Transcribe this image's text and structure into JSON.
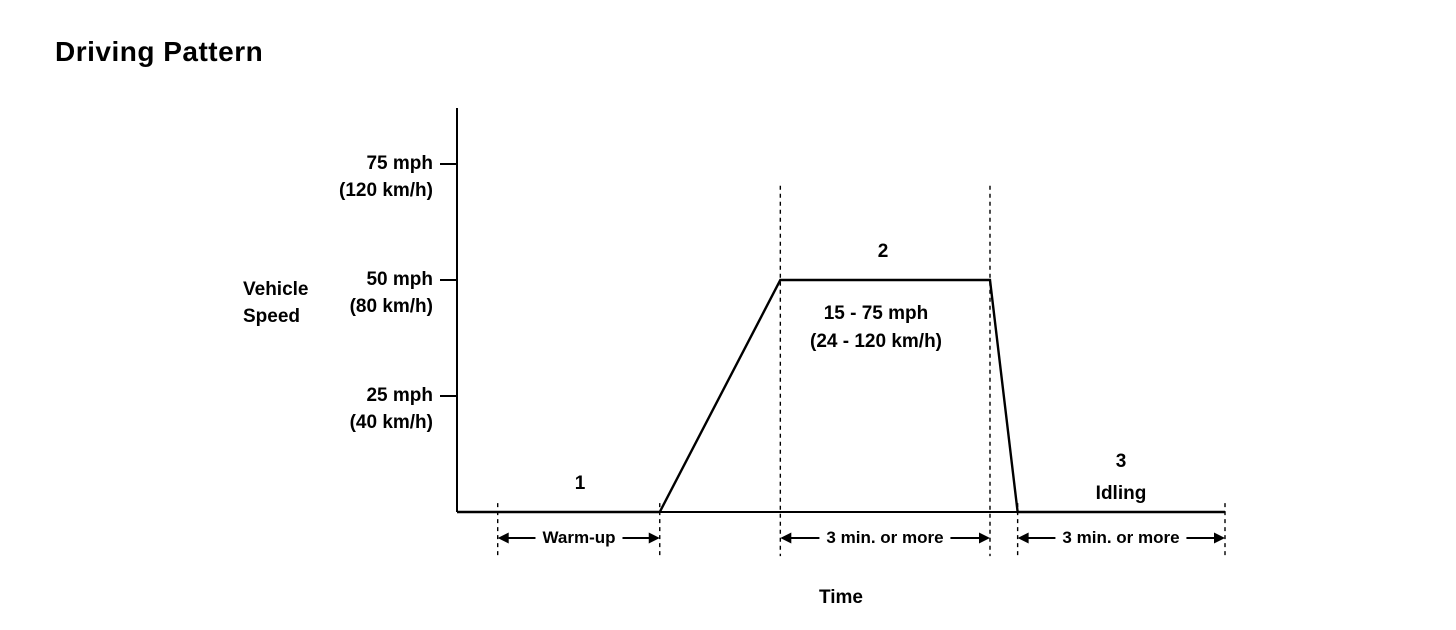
{
  "title": "Driving Pattern",
  "chart_data": {
    "type": "line",
    "title": "Driving Pattern",
    "xlabel": "Time",
    "ylabel_line1": "Vehicle",
    "ylabel_line2": "Speed",
    "ylim_mph": [
      0,
      87
    ],
    "grid": false,
    "y_ticks": [
      {
        "mph": 75,
        "mph_label": "75 mph",
        "kmh_label": "(120 km/h)"
      },
      {
        "mph": 50,
        "mph_label": "50 mph",
        "kmh_label": "(80 km/h)"
      },
      {
        "mph": 25,
        "mph_label": "25 mph",
        "kmh_label": "(40 km/h)"
      }
    ],
    "trace": {
      "x_pct": [
        0,
        26.4,
        42.1,
        69.4,
        73,
        100
      ],
      "speed_mph": [
        0,
        0,
        50,
        50,
        0,
        0
      ]
    },
    "dashed_lines": [
      {
        "x_pct": 5.3,
        "top_mph": 1.9,
        "bottom_mph": -9.5
      },
      {
        "x_pct": 26.4,
        "top_mph": 1.9,
        "bottom_mph": -9.5
      },
      {
        "x_pct": 42.1,
        "top_mph": 70.3,
        "bottom_mph": -9.5
      },
      {
        "x_pct": 69.4,
        "top_mph": 70.3,
        "bottom_mph": -9.5
      },
      {
        "x_pct": 73,
        "top_mph": 1.9,
        "bottom_mph": -9.5
      },
      {
        "x_pct": 100,
        "top_mph": 1.9,
        "bottom_mph": -9.5
      }
    ],
    "annotations": {
      "phase1_number": "1",
      "phase2_number": "2",
      "phase2_speed_line1": "15 - 75 mph",
      "phase2_speed_line2": "(24 - 120 km/h)",
      "phase3_number": "3",
      "phase3_label": "Idling"
    },
    "time_spans": [
      {
        "label": "Warm-up",
        "from_pct": 5.3,
        "to_pct": 26.4
      },
      {
        "label": "3 min. or  more",
        "from_pct": 42.1,
        "to_pct": 69.4
      },
      {
        "label": "3 min. or  more",
        "from_pct": 73,
        "to_pct": 100
      }
    ],
    "phases_summary": [
      {
        "number": "1",
        "description": "Warm-up"
      },
      {
        "number": "2",
        "description": "15 - 75 mph (24 - 120 km/h) for 3 min. or more"
      },
      {
        "number": "3",
        "description": "Idling for 3 min. or more"
      }
    ],
    "line_color": "#000000",
    "background_color": "#ffffff"
  }
}
